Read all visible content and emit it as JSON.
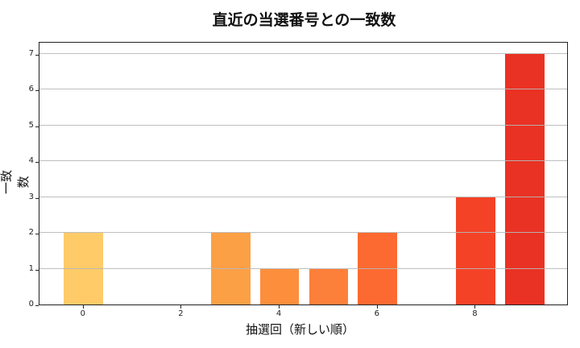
{
  "chart_data": {
    "type": "bar",
    "title": "直近の当選番号との一致数",
    "xlabel": "抽選回（新しい順）",
    "ylabel": "一致数",
    "x": [
      0,
      1,
      2,
      3,
      4,
      5,
      6,
      7,
      8,
      9
    ],
    "values": [
      2,
      0,
      0,
      2,
      1,
      1,
      2,
      0,
      3,
      7
    ],
    "colors": [
      "#fecb68",
      "#fec563",
      "#feb552",
      "#fca046",
      "#fd8e3c",
      "#fd803a",
      "#fd6a31",
      "#f9522a",
      "#f44227",
      "#e93224"
    ],
    "xticks": [
      0,
      2,
      4,
      6,
      8
    ],
    "yticks": [
      0,
      1,
      2,
      3,
      4,
      5,
      6,
      7
    ],
    "ylim": [
      0,
      7.35
    ],
    "xlim": [
      -0.9,
      9.9
    ],
    "grid": "y"
  }
}
